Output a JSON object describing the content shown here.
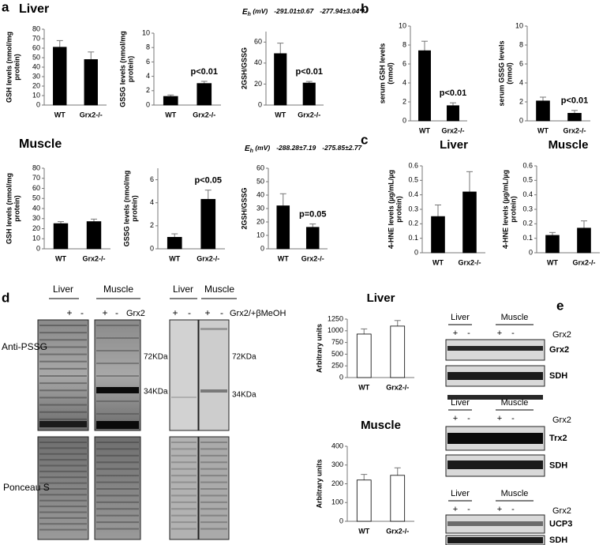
{
  "figure": {
    "panel_letters": [
      "a",
      "b",
      "c",
      "d",
      "e"
    ],
    "section_titles": [
      "Liver",
      "Muscle"
    ],
    "blot_d": {
      "rows": [
        "Anti-PSSG",
        "Ponceau S"
      ],
      "groups": [
        {
          "tissues": [
            "Liver",
            "Muscle"
          ],
          "signs": [
            "+",
            "-",
            "+",
            "-"
          ],
          "factor": "Grx2",
          "markers": [
            "72KDa",
            "34KDa"
          ]
        },
        {
          "tissues": [
            "Liver",
            "Muscle"
          ],
          "signs": [
            "+",
            "-",
            "+",
            "-"
          ],
          "factor": "Grx2/+βMeOH",
          "markers": [
            "72KDa",
            "34KDa"
          ]
        }
      ]
    },
    "blot_e": [
      {
        "tissues": [
          "Liver",
          "Muscle"
        ],
        "signs": [
          "+",
          "-",
          "+",
          "-"
        ],
        "factor": "Grx2",
        "proteins": [
          "Grx2",
          "SDH"
        ]
      },
      {
        "tissues": [
          "Liver",
          "Muscle"
        ],
        "signs": [
          "+",
          "-",
          "+",
          "-"
        ],
        "factor": "Grx2",
        "proteins": [
          "Trx2",
          "SDH"
        ]
      },
      {
        "tissues": [
          "Liver",
          "Muscle"
        ],
        "signs": [
          "+",
          "-",
          "+",
          "-"
        ],
        "factor": "Grx2",
        "proteins": [
          "UCP3",
          "SDH"
        ]
      }
    ]
  },
  "chart_data": [
    {
      "type": "bar",
      "ylabel": [
        "GSH levels (nmol/mg",
        "protein)"
      ],
      "categories": [
        "WT",
        "Grx2-/-"
      ],
      "values": [
        61,
        48
      ],
      "errors": [
        7,
        8
      ],
      "color": "#000000",
      "ylim": [
        0,
        80
      ],
      "yticks": [
        0,
        10,
        20,
        30,
        40,
        50,
        60,
        70,
        80
      ]
    },
    {
      "type": "bar",
      "ylabel": [
        "GSSG levels (nmol/mg",
        "protein)"
      ],
      "categories": [
        "WT",
        "Grx2-/-"
      ],
      "values": [
        1.2,
        3.0
      ],
      "errors": [
        0.2,
        0.3
      ],
      "color": "#000000",
      "ylim": [
        0,
        10
      ],
      "yticks": [
        0,
        2,
        4,
        6,
        8,
        10
      ],
      "annotation": "p<0.01"
    },
    {
      "type": "bar",
      "ylabel": [
        "2GSH/GSSG"
      ],
      "categories": [
        "WT",
        "Grx2-/-"
      ],
      "values": [
        49,
        21
      ],
      "errors": [
        10,
        1.5
      ],
      "color": "#000000",
      "ylim": [
        0,
        70
      ],
      "yticks": [
        0,
        20,
        40,
        60
      ],
      "annotation": "p<0.01",
      "eh": {
        "symbol": "E",
        "subscript": "h",
        "unit": " (mV)",
        "values": [
          "-291.01±0.67",
          "-277.94±3.04**"
        ]
      }
    },
    {
      "type": "bar",
      "ylabel": [
        "serum GSH levels",
        "(nmol)"
      ],
      "categories": [
        "WT",
        "Grx2-/-"
      ],
      "values": [
        7.4,
        1.6
      ],
      "errors": [
        1.0,
        0.3
      ],
      "color": "#000000",
      "ylim": [
        0,
        10
      ],
      "yticks": [
        0,
        2,
        4,
        6,
        8,
        10
      ],
      "annotation": "p<0.01"
    },
    {
      "type": "bar",
      "ylabel": [
        "serum GSSG levels",
        "(nmol)"
      ],
      "categories": [
        "WT",
        "Grx2-/-"
      ],
      "values": [
        2.1,
        0.8
      ],
      "errors": [
        0.4,
        0.3
      ],
      "color": "#000000",
      "ylim": [
        0,
        10
      ],
      "yticks": [
        0,
        2,
        4,
        6,
        8,
        10
      ],
      "annotation": "p<0.01"
    },
    {
      "type": "bar",
      "ylabel": [
        "GSH levels (nmol/mg",
        "protein)"
      ],
      "categories": [
        "WT",
        "Grx2-/-"
      ],
      "values": [
        25,
        27
      ],
      "errors": [
        2,
        2.5
      ],
      "color": "#000000",
      "ylim": [
        0,
        80
      ],
      "yticks": [
        0,
        10,
        20,
        30,
        40,
        50,
        60,
        70,
        80
      ]
    },
    {
      "type": "bar",
      "ylabel": [
        "GSSG levels (nmol/mg",
        "protein)"
      ],
      "categories": [
        "WT",
        "Grx2-/-"
      ],
      "values": [
        1.0,
        4.3
      ],
      "errors": [
        0.3,
        0.8
      ],
      "color": "#000000",
      "ylim": [
        0,
        7
      ],
      "yticks": [
        0,
        2,
        4,
        6
      ],
      "annotation": "p<0.05"
    },
    {
      "type": "bar",
      "ylabel": [
        "2GSH/GSSG"
      ],
      "categories": [
        "WT",
        "Grx2-/-"
      ],
      "values": [
        32,
        16
      ],
      "errors": [
        9,
        2.5
      ],
      "color": "#000000",
      "ylim": [
        0,
        60
      ],
      "yticks": [
        0,
        10,
        20,
        30,
        40,
        50,
        60
      ],
      "annotation": "p=0.05",
      "eh": {
        "symbol": "E",
        "subscript": "h",
        "unit": " (mV)",
        "values": [
          "-288.28±7.19",
          "-275.85±2.77"
        ]
      }
    },
    {
      "type": "bar",
      "title": "Liver",
      "ylabel": [
        "4-HNE levels (µg/mL/µg",
        "protein)"
      ],
      "categories": [
        "WT",
        "Grx2-/-"
      ],
      "values": [
        0.25,
        0.42
      ],
      "errors": [
        0.08,
        0.14
      ],
      "color": "#000000",
      "ylim": [
        0,
        0.6
      ],
      "yticks": [
        0,
        0.1,
        0.2,
        0.3,
        0.4,
        0.5,
        0.6
      ]
    },
    {
      "type": "bar",
      "title": "Muscle",
      "ylabel": [
        "4-HNE levels (µg/mL/µg",
        "protein)"
      ],
      "categories": [
        "WT",
        "Grx2-/-"
      ],
      "values": [
        0.12,
        0.17
      ],
      "errors": [
        0.02,
        0.05
      ],
      "color": "#000000",
      "ylim": [
        0,
        0.6
      ],
      "yticks": [
        0,
        0.1,
        0.2,
        0.3,
        0.4,
        0.5,
        0.6
      ]
    },
    {
      "type": "bar",
      "title": "Liver",
      "ylabel": [
        "Arbitrary units"
      ],
      "categories": [
        "WT",
        "Grx2-/-"
      ],
      "values": [
        930,
        1100
      ],
      "errors": [
        110,
        120
      ],
      "color": "#ffffff",
      "ylim": [
        0,
        1250
      ],
      "yticks": [
        0,
        250,
        500,
        750,
        1000,
        1250
      ]
    },
    {
      "type": "bar",
      "title": "Muscle",
      "ylabel": [
        "Arbitrary units"
      ],
      "categories": [
        "WT",
        "Grx2-/-"
      ],
      "values": [
        220,
        245
      ],
      "errors": [
        30,
        40
      ],
      "color": "#ffffff",
      "ylim": [
        0,
        400
      ],
      "yticks": [
        0,
        100,
        200,
        300,
        400
      ]
    }
  ]
}
